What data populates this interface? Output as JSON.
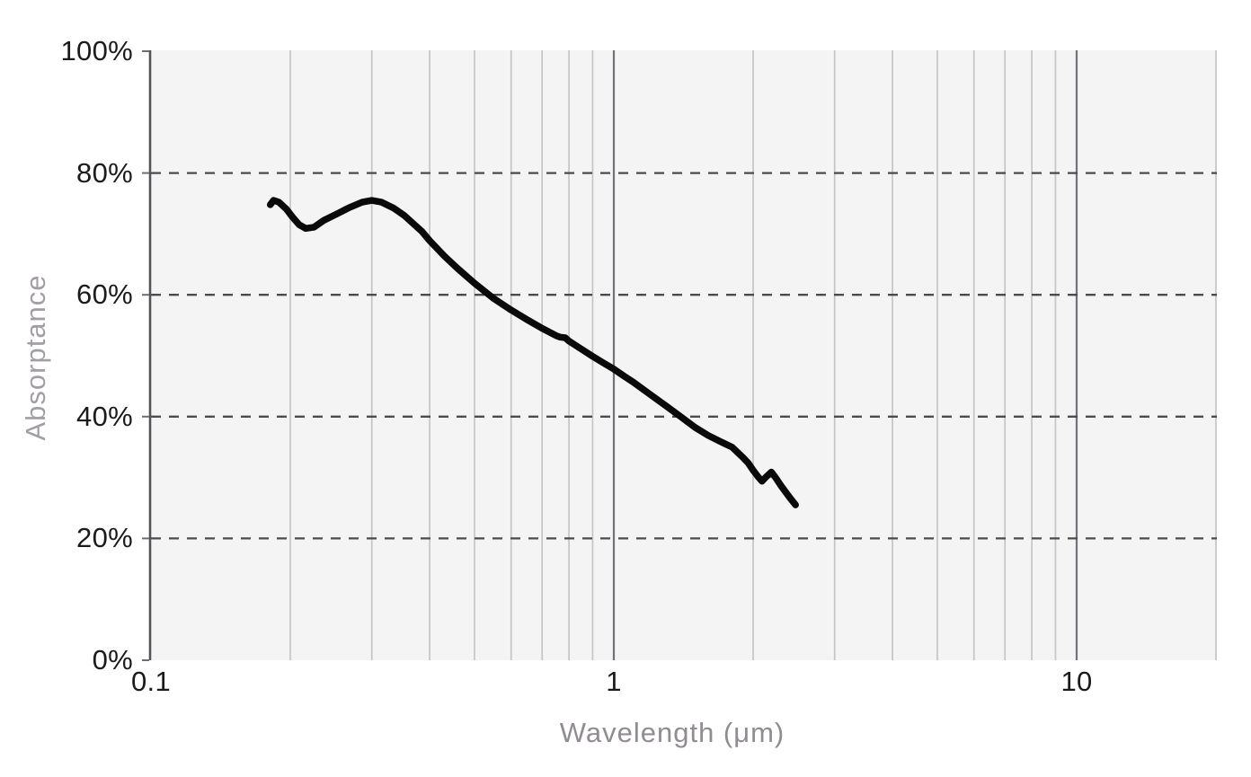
{
  "chart_data": {
    "type": "line",
    "title": "",
    "xlabel": "Wavelength (μm)",
    "ylabel": "Absorptance",
    "x_scale": "log",
    "xlim": [
      0.1,
      20
    ],
    "ylim": [
      0,
      100
    ],
    "grid": true,
    "legend": false,
    "x_ticks": [
      {
        "value": 0.1,
        "label": "0.1"
      },
      {
        "value": 1,
        "label": "1"
      },
      {
        "value": 10,
        "label": "10"
      }
    ],
    "y_ticks": [
      {
        "value": 100,
        "label": "100%"
      },
      {
        "value": 80,
        "label": "80%"
      },
      {
        "value": 60,
        "label": "60%"
      },
      {
        "value": 40,
        "label": "40%"
      },
      {
        "value": 20,
        "label": "20%"
      },
      {
        "value": 0,
        "label": "0%"
      }
    ],
    "x_minor_gridlines": [
      0.2,
      0.3,
      0.4,
      0.5,
      0.6,
      0.7,
      0.8,
      0.9,
      2,
      3,
      4,
      5,
      6,
      7,
      8,
      9,
      20
    ],
    "x_major_gridlines": [
      1,
      10
    ],
    "y_dashed_gridlines": [
      20,
      40,
      60,
      80
    ],
    "series": [
      {
        "name": "Absorptance",
        "color": "#0a0a0a",
        "points_um_percent": [
          [
            0.181,
            74.8
          ],
          [
            0.184,
            75.5
          ],
          [
            0.189,
            75.2
          ],
          [
            0.196,
            74.1
          ],
          [
            0.202,
            72.8
          ],
          [
            0.209,
            71.5
          ],
          [
            0.216,
            70.9
          ],
          [
            0.225,
            71.1
          ],
          [
            0.236,
            72.2
          ],
          [
            0.254,
            73.4
          ],
          [
            0.268,
            74.3
          ],
          [
            0.286,
            75.2
          ],
          [
            0.3,
            75.5
          ],
          [
            0.315,
            75.2
          ],
          [
            0.335,
            74.2
          ],
          [
            0.353,
            73.0
          ],
          [
            0.37,
            71.6
          ],
          [
            0.385,
            70.4
          ],
          [
            0.4,
            68.9
          ],
          [
            0.43,
            66.4
          ],
          [
            0.46,
            64.3
          ],
          [
            0.5,
            61.9
          ],
          [
            0.55,
            59.4
          ],
          [
            0.6,
            57.5
          ],
          [
            0.65,
            55.9
          ],
          [
            0.7,
            54.5
          ],
          [
            0.75,
            53.3
          ],
          [
            0.765,
            53.05
          ],
          [
            0.785,
            52.95
          ],
          [
            0.8,
            52.4
          ],
          [
            0.85,
            51.1
          ],
          [
            0.9,
            49.9
          ],
          [
            0.95,
            48.8
          ],
          [
            1.0,
            47.8
          ],
          [
            1.05,
            46.7
          ],
          [
            1.1,
            45.7
          ],
          [
            1.2,
            43.6
          ],
          [
            1.3,
            41.7
          ],
          [
            1.4,
            39.9
          ],
          [
            1.5,
            38.2
          ],
          [
            1.6,
            36.9
          ],
          [
            1.7,
            35.9
          ],
          [
            1.8,
            35.0
          ],
          [
            1.9,
            33.3
          ],
          [
            1.95,
            32.4
          ],
          [
            2.0,
            31.2
          ],
          [
            2.05,
            30.1
          ],
          [
            2.09,
            29.4
          ],
          [
            2.14,
            30.2
          ],
          [
            2.19,
            30.9
          ],
          [
            2.24,
            29.9
          ],
          [
            2.3,
            28.6
          ],
          [
            2.4,
            26.7
          ],
          [
            2.47,
            25.5
          ]
        ]
      }
    ],
    "colors": {
      "page_background": "#ffffff",
      "plot_background": "#f5f4f5",
      "minor_gridline": "#c5c4c7",
      "major_gridline": "#737177",
      "dashed_gridline": "#4b4b4d",
      "y_axis_line": "#555358",
      "y_tick_mark": "#6e6c71",
      "tick_label": "#1b1b1b",
      "x_axis_title": "#908c92",
      "y_axis_title": "#a29ea4",
      "series_line": "#0a0a0a"
    }
  }
}
